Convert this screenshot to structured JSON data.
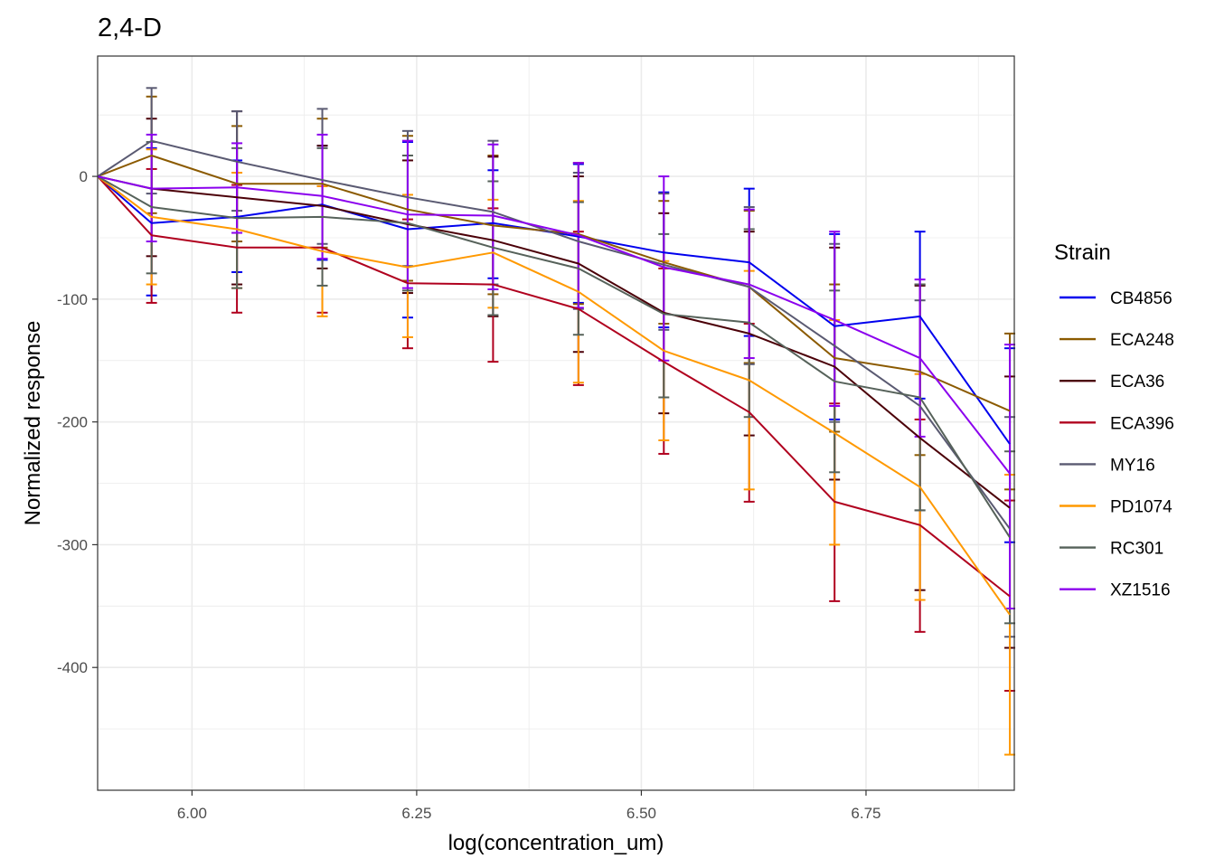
{
  "chart_data": {
    "type": "line",
    "title": "2,4-D",
    "xlabel": "log(concentration_um)",
    "ylabel": "Normalized response",
    "xlim": [
      5.895,
      6.915
    ],
    "ylim": [
      -500,
      98
    ],
    "x_ticks": [
      6.0,
      6.25,
      6.5,
      6.75
    ],
    "x_tick_labels": [
      "6.00",
      "6.25",
      "6.50",
      "6.75"
    ],
    "y_ticks": [
      0,
      -100,
      -200,
      -300,
      -400
    ],
    "y_tick_labels": [
      "0",
      "-100",
      "-200",
      "-300",
      "-400"
    ],
    "grid": true,
    "legend": {
      "title": "Strain",
      "position": "right"
    },
    "x": [
      5.895,
      5.955,
      6.05,
      6.145,
      6.24,
      6.335,
      6.43,
      6.525,
      6.62,
      6.715,
      6.81,
      6.91
    ],
    "series": [
      {
        "name": "CB4856",
        "color": "#0000EE",
        "values": [
          0,
          -38,
          -33,
          -23,
          -43,
          -38,
          -49,
          -62,
          -70,
          -122,
          -114,
          -218
        ],
        "lower": [
          0,
          -97,
          -78,
          -68,
          -115,
          -83,
          -103,
          -123,
          -130,
          -198,
          -181,
          -298
        ],
        "upper": [
          0,
          23,
          13,
          25,
          28,
          5,
          10,
          -13,
          -10,
          -47,
          -45,
          -140
        ]
      },
      {
        "name": "ECA248",
        "color": "#8B5A00",
        "values": [
          0,
          17,
          -6,
          -6,
          -27,
          -40,
          -47,
          -70,
          -90,
          -148,
          -159,
          -191
        ],
        "lower": [
          0,
          -30,
          -53,
          -58,
          -85,
          -96,
          -104,
          -120,
          -152,
          -208,
          -227,
          -255
        ],
        "upper": [
          0,
          65,
          41,
          47,
          33,
          17,
          11,
          -20,
          -28,
          -88,
          -88,
          -128
        ]
      },
      {
        "name": "ECA36",
        "color": "#4B0008",
        "values": [
          0,
          -10,
          -17,
          -24,
          -39,
          -52,
          -71,
          -111,
          -128,
          -155,
          -213,
          -270
        ],
        "lower": [
          0,
          -65,
          -88,
          -75,
          -95,
          -114,
          -143,
          -193,
          -211,
          -247,
          -337,
          -384
        ],
        "upper": [
          0,
          47,
          53,
          25,
          13,
          16,
          0,
          -30,
          -45,
          -58,
          -89,
          -163
        ]
      },
      {
        "name": "ECA396",
        "color": "#B0001E",
        "values": [
          0,
          -48,
          -58,
          -58,
          -87,
          -88,
          -108,
          -151,
          -192,
          -265,
          -284,
          -342
        ],
        "lower": [
          0,
          -103,
          -111,
          -111,
          -140,
          -151,
          -170,
          -226,
          -265,
          -346,
          -371,
          -419
        ],
        "upper": [
          0,
          6,
          -7,
          -8,
          -35,
          -26,
          -45,
          -75,
          -120,
          -185,
          -198,
          -264
        ]
      },
      {
        "name": "MY16",
        "color": "#5A5A72",
        "values": [
          0,
          29,
          12,
          -3,
          -17,
          -29,
          -53,
          -72,
          -90,
          -138,
          -187,
          -287
        ],
        "lower": [
          0,
          -14,
          -28,
          -55,
          -73,
          -88,
          -108,
          -125,
          -153,
          -200,
          -272,
          -375
        ],
        "upper": [
          0,
          72,
          53,
          55,
          37,
          29,
          3,
          -14,
          -25,
          -55,
          -101,
          -196
        ]
      },
      {
        "name": "PD1074",
        "color": "#FF9900",
        "values": [
          0,
          -33,
          -43,
          -61,
          -74,
          -62,
          -94,
          -142,
          -166,
          -209,
          -253,
          -357
        ],
        "lower": [
          0,
          -88,
          -91,
          -114,
          -131,
          -107,
          -168,
          -215,
          -255,
          -300,
          -345,
          -471
        ],
        "upper": [
          0,
          22,
          3,
          -8,
          -15,
          -19,
          -20,
          -69,
          -77,
          -117,
          -161,
          -243
        ]
      },
      {
        "name": "RC301",
        "color": "#56625A",
        "values": [
          0,
          -25,
          -34,
          -33,
          -38,
          -58,
          -75,
          -112,
          -119,
          -167,
          -180,
          -294
        ],
        "lower": [
          0,
          -79,
          -91,
          -89,
          -93,
          -113,
          -129,
          -180,
          -196,
          -241,
          -272,
          -364
        ],
        "upper": [
          0,
          28,
          23,
          23,
          17,
          -4,
          -21,
          -47,
          -43,
          -93,
          -88,
          -224
        ]
      },
      {
        "name": "XZ1516",
        "color": "#8B00EE",
        "values": [
          0,
          -10,
          -9,
          -16,
          -31,
          -32,
          -48,
          -74,
          -88,
          -117,
          -148,
          -242
        ],
        "lower": [
          0,
          -53,
          -46,
          -67,
          -91,
          -92,
          -107,
          -150,
          -148,
          -187,
          -212,
          -352
        ],
        "upper": [
          0,
          34,
          27,
          34,
          29,
          26,
          11,
          0,
          -27,
          -45,
          -84,
          -137
        ]
      }
    ]
  }
}
